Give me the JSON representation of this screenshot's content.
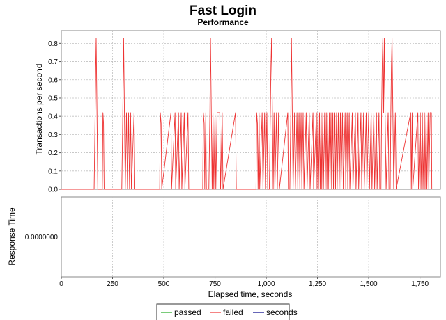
{
  "chart_data": {
    "type": "line",
    "title": "Fast Login",
    "subtitle": "Performance",
    "xlabel": "Elapsed time, seconds",
    "xlim": [
      0,
      1850
    ],
    "xticks": [
      0,
      250,
      500,
      750,
      1000,
      1250,
      1500,
      1750
    ],
    "xtick_labels": [
      "0",
      "250",
      "500",
      "750",
      "1,000",
      "1,250",
      "1,500",
      "1,750"
    ],
    "grid": true,
    "legend_placement": "bottom-center",
    "legend": [
      {
        "name": "passed",
        "color": "#22aa22"
      },
      {
        "name": "failed",
        "color": "#ee3333"
      },
      {
        "name": "seconds",
        "color": "#000088"
      }
    ],
    "panels": [
      {
        "id": "tps",
        "ylabel": "Transactions per second",
        "ylim": [
          0,
          0.87
        ],
        "yticks": [
          0.0,
          0.1,
          0.2,
          0.3,
          0.4,
          0.5,
          0.6,
          0.7,
          0.8
        ],
        "ytick_labels": [
          "0.0",
          "0.1",
          "0.2",
          "0.3",
          "0.4",
          "0.5",
          "0.6",
          "0.7",
          "0.8"
        ],
        "series": [
          {
            "name": "failed",
            "color": "#ee3333",
            "points": [
              [
                0,
                0
              ],
              [
                160,
                0
              ],
              [
                165,
                0.42
              ],
              [
                168,
                0.68
              ],
              [
                170,
                0.83
              ],
              [
                174,
                0.42
              ],
              [
                178,
                0
              ],
              [
                200,
                0
              ],
              [
                203,
                0.42
              ],
              [
                206,
                0.36
              ],
              [
                209,
                0
              ],
              [
                295,
                0
              ],
              [
                300,
                0.42
              ],
              [
                304,
                0.83
              ],
              [
                308,
                0.42
              ],
              [
                312,
                0
              ],
              [
                318,
                0.42
              ],
              [
                323,
                0
              ],
              [
                328,
                0.42
              ],
              [
                333,
                0
              ],
              [
                338,
                0.42
              ],
              [
                342,
                0
              ],
              [
                355,
                0.42
              ],
              [
                359,
                0
              ],
              [
                480,
                0
              ],
              [
                483,
                0.42
              ],
              [
                487,
                0.36
              ],
              [
                490,
                0
              ],
              [
                535,
                0.42
              ],
              [
                538,
                0
              ],
              [
                555,
                0.42
              ],
              [
                558,
                0
              ],
              [
                572,
                0.42
              ],
              [
                575,
                0
              ],
              [
                585,
                0.42
              ],
              [
                588,
                0
              ],
              [
                600,
                0.42
              ],
              [
                603,
                0
              ],
              [
                618,
                0.42
              ],
              [
                622,
                0
              ],
              [
                690,
                0
              ],
              [
                693,
                0.42
              ],
              [
                697,
                0.36
              ],
              [
                700,
                0
              ],
              [
                705,
                0.42
              ],
              [
                708,
                0
              ],
              [
                720,
                0
              ],
              [
                725,
                0.42
              ],
              [
                728,
                0.83
              ],
              [
                732,
                0.42
              ],
              [
                736,
                0
              ],
              [
                740,
                0.42
              ],
              [
                744,
                0
              ],
              [
                750,
                0.42
              ],
              [
                754,
                0
              ],
              [
                760,
                0.42
              ],
              [
                773,
                0.42
              ],
              [
                777,
                0
              ],
              [
                785,
                0.42
              ],
              [
                789,
                0
              ],
              [
                850,
                0.42
              ],
              [
                854,
                0
              ],
              [
                950,
                0
              ],
              [
                953,
                0.42
              ],
              [
                957,
                0.36
              ],
              [
                960,
                0
              ],
              [
                965,
                0.42
              ],
              [
                968,
                0
              ],
              [
                980,
                0.42
              ],
              [
                984,
                0
              ],
              [
                992,
                0.42
              ],
              [
                996,
                0
              ],
              [
                1003,
                0.42
              ],
              [
                1007,
                0
              ],
              [
                1015,
                0
              ],
              [
                1020,
                0.42
              ],
              [
                1023,
                0.68
              ],
              [
                1026,
                0.83
              ],
              [
                1030,
                0.42
              ],
              [
                1034,
                0
              ],
              [
                1038,
                0.42
              ],
              [
                1042,
                0
              ],
              [
                1050,
                0.42
              ],
              [
                1054,
                0
              ],
              [
                1060,
                0.42
              ],
              [
                1064,
                0
              ],
              [
                1105,
                0.42
              ],
              [
                1108,
                0
              ],
              [
                1115,
                0
              ],
              [
                1120,
                0.42
              ],
              [
                1123,
                0.83
              ],
              [
                1127,
                0.42
              ],
              [
                1131,
                0
              ],
              [
                1138,
                0.42
              ],
              [
                1142,
                0
              ],
              [
                1150,
                0.42
              ],
              [
                1154,
                0
              ],
              [
                1160,
                0.42
              ],
              [
                1164,
                0
              ],
              [
                1170,
                0.42
              ],
              [
                1174,
                0
              ],
              [
                1180,
                0.42
              ],
              [
                1184,
                0
              ],
              [
                1195,
                0.42
              ],
              [
                1199,
                0
              ],
              [
                1210,
                0.42
              ],
              [
                1214,
                0
              ],
              [
                1228,
                0.42
              ],
              [
                1231,
                0
              ],
              [
                1245,
                0.42
              ],
              [
                1248,
                0
              ],
              [
                1252,
                0.42
              ],
              [
                1255,
                0
              ],
              [
                1260,
                0.42
              ],
              [
                1263,
                0
              ],
              [
                1268,
                0.42
              ],
              [
                1271,
                0
              ],
              [
                1276,
                0.42
              ],
              [
                1279,
                0
              ],
              [
                1285,
                0.42
              ],
              [
                1288,
                0
              ],
              [
                1293,
                0.42
              ],
              [
                1296,
                0
              ],
              [
                1300,
                0.42
              ],
              [
                1303,
                0
              ],
              [
                1308,
                0.42
              ],
              [
                1311,
                0
              ],
              [
                1316,
                0.42
              ],
              [
                1319,
                0
              ],
              [
                1325,
                0.42
              ],
              [
                1328,
                0
              ],
              [
                1335,
                0.42
              ],
              [
                1338,
                0
              ],
              [
                1343,
                0.42
              ],
              [
                1346,
                0
              ],
              [
                1352,
                0.42
              ],
              [
                1356,
                0
              ],
              [
                1362,
                0.42
              ],
              [
                1365,
                0
              ],
              [
                1372,
                0.42
              ],
              [
                1376,
                0
              ],
              [
                1385,
                0.42
              ],
              [
                1388,
                0
              ],
              [
                1395,
                0.42
              ],
              [
                1398,
                0
              ],
              [
                1405,
                0.42
              ],
              [
                1408,
                0
              ],
              [
                1420,
                0.42
              ],
              [
                1423,
                0
              ],
              [
                1435,
                0.42
              ],
              [
                1438,
                0
              ],
              [
                1448,
                0.42
              ],
              [
                1451,
                0
              ],
              [
                1462,
                0.42
              ],
              [
                1466,
                0
              ],
              [
                1475,
                0.42
              ],
              [
                1478,
                0
              ],
              [
                1488,
                0.42
              ],
              [
                1491,
                0
              ],
              [
                1500,
                0.42
              ],
              [
                1504,
                0
              ],
              [
                1512,
                0.42
              ],
              [
                1516,
                0
              ],
              [
                1525,
                0.42
              ],
              [
                1529,
                0
              ],
              [
                1538,
                0.42
              ],
              [
                1541,
                0
              ],
              [
                1550,
                0.42
              ],
              [
                1554,
                0
              ],
              [
                1560,
                0
              ],
              [
                1563,
                0.42
              ],
              [
                1566,
                0.68
              ],
              [
                1569,
                0.83
              ],
              [
                1573,
                0.42
              ],
              [
                1576,
                0.83
              ],
              [
                1580,
                0.42
              ],
              [
                1585,
                0
              ],
              [
                1595,
                0.42
              ],
              [
                1599,
                0
              ],
              [
                1605,
                0
              ],
              [
                1608,
                0.42
              ],
              [
                1611,
                0.68
              ],
              [
                1614,
                0.83
              ],
              [
                1618,
                0.42
              ],
              [
                1622,
                0
              ],
              [
                1630,
                0.42
              ],
              [
                1634,
                0
              ],
              [
                1705,
                0.42
              ],
              [
                1708,
                0
              ],
              [
                1712,
                0.42
              ],
              [
                1715,
                0
              ],
              [
                1740,
                0.42
              ],
              [
                1743,
                0
              ],
              [
                1752,
                0.42
              ],
              [
                1755,
                0
              ],
              [
                1762,
                0.42
              ],
              [
                1765,
                0
              ],
              [
                1772,
                0.42
              ],
              [
                1775,
                0
              ],
              [
                1780,
                0.42
              ],
              [
                1784,
                0
              ],
              [
                1790,
                0.42
              ],
              [
                1793,
                0
              ],
              [
                1800,
                0.42
              ],
              [
                1806,
                0.42
              ],
              [
                1808,
                0
              ]
            ]
          }
        ]
      },
      {
        "id": "response",
        "ylabel": "Response Time",
        "ylim": [
          -1,
          1
        ],
        "yticks": [
          0
        ],
        "ytick_labels": [
          "0.0000000"
        ],
        "series": [
          {
            "name": "seconds",
            "color": "#000088",
            "points": [
              [
                0,
                0
              ],
              [
                1808,
                0
              ]
            ]
          }
        ]
      }
    ]
  }
}
